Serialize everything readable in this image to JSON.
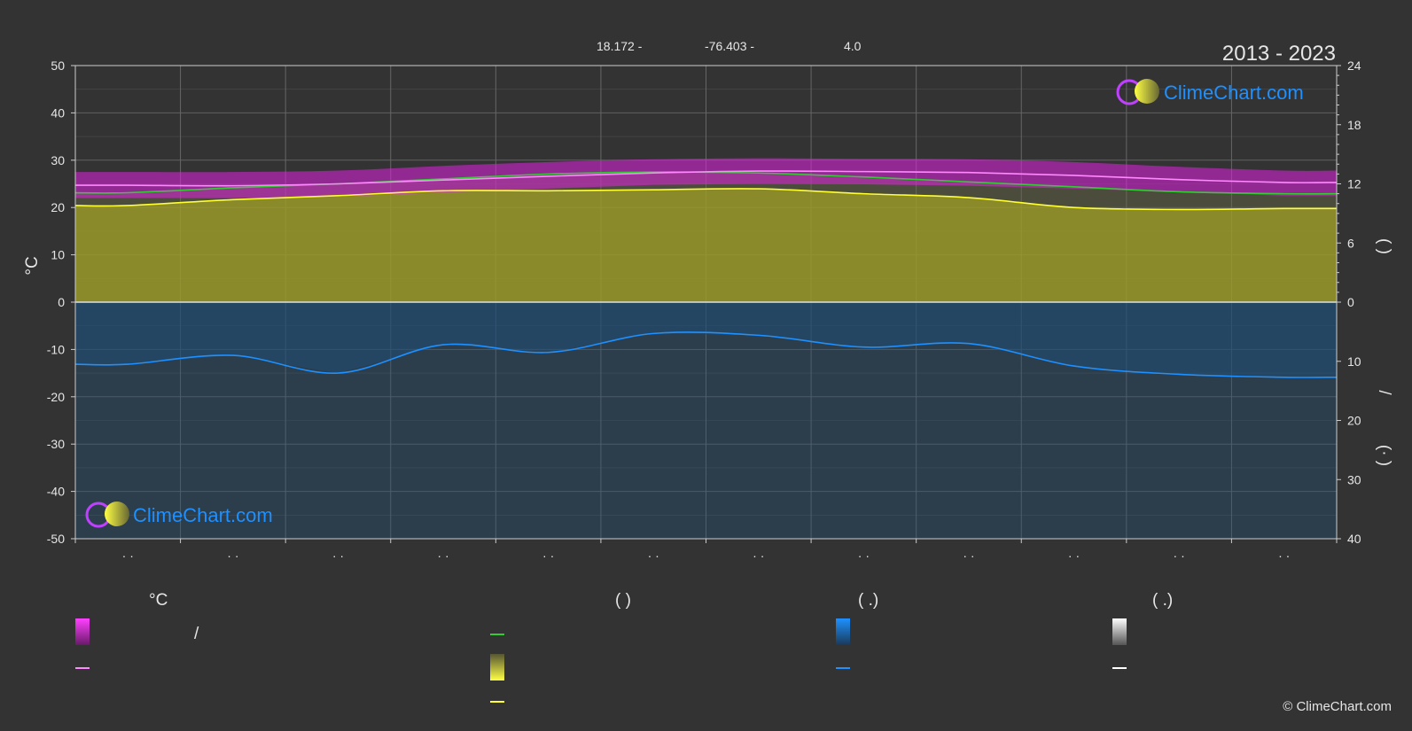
{
  "header": {
    "lat": "18.172 -",
    "lon": "-76.403 -",
    "elev": "4.0",
    "period": "2013 - 2023"
  },
  "branding": {
    "name": "ClimeChart.com",
    "copyright": "© ClimeChart.com"
  },
  "colors": {
    "background": "#333333",
    "grid": "#666666",
    "axis": "#cccccc",
    "daily_range": "#e020e0",
    "mean_max_line": "#ff88ff",
    "daylight_line": "#33cc33",
    "sunshine_fill": "#9a9a2a",
    "sunshine_line": "#ffff33",
    "precip_fill": "#1f4f78",
    "precip_line": "#1e90ff",
    "brand": "#1e90ff"
  },
  "legend": {
    "col1_header": "°C",
    "col2_header": "(          )",
    "col3_header": "(    .)",
    "col4_header": "(    .)",
    "slash": "/"
  },
  "chart_data": {
    "type": "area",
    "x_categories": [
      "· ·",
      "· ·",
      "· ·",
      "· ·",
      "· ·",
      "· ·",
      "· ·",
      "· ·",
      "· ·",
      "· ·",
      "· ·",
      "· ·"
    ],
    "left_axis": {
      "label": "°C",
      "ylim": [
        -50,
        50
      ],
      "ticks": [
        50,
        40,
        30,
        20,
        10,
        0,
        -10,
        -20,
        -30,
        -40,
        -50
      ]
    },
    "right_axis_top": {
      "label": "(   )",
      "ylim": [
        0,
        24
      ],
      "ticks": [
        24,
        18,
        12,
        6,
        0
      ]
    },
    "right_axis_bottom": {
      "label": "(·   )",
      "ylim": [
        0,
        40
      ],
      "ticks": [
        0,
        10,
        20,
        30,
        40
      ],
      "inverted": true
    },
    "right_axis_divider": "/",
    "series": [
      {
        "kind": "temperature_daily_max_band_top",
        "values": [
          27.5,
          27.5,
          27.8,
          28.8,
          29.6,
          30.2,
          30.4,
          30.3,
          30.2,
          29.6,
          28.6,
          27.8
        ]
      },
      {
        "kind": "temperature_daily_min_band_bottom",
        "values": [
          22.0,
          22.0,
          22.3,
          23.2,
          24.0,
          24.8,
          25.0,
          24.9,
          24.6,
          24.0,
          23.3,
          22.5
        ]
      },
      {
        "kind": "temperature_mean_line",
        "values": [
          24.7,
          24.6,
          25.0,
          25.8,
          26.6,
          27.3,
          27.7,
          27.6,
          27.4,
          26.8,
          25.9,
          25.3
        ]
      },
      {
        "kind": "daylight_hours",
        "axis": "right_top",
        "values": [
          11.1,
          11.6,
          12.0,
          12.5,
          13.0,
          13.2,
          13.1,
          12.7,
          12.2,
          11.7,
          11.2,
          11.0
        ]
      },
      {
        "kind": "sunshine_hours",
        "axis": "right_top",
        "values": [
          9.8,
          10.4,
          10.8,
          11.3,
          11.3,
          11.4,
          11.5,
          11.0,
          10.6,
          9.6,
          9.4,
          9.5
        ]
      },
      {
        "kind": "precipitation_mm",
        "axis": "right_bottom",
        "values": [
          10.5,
          9.0,
          12.0,
          7.2,
          8.5,
          5.3,
          5.6,
          7.6,
          7.0,
          10.8,
          12.2,
          12.7
        ]
      }
    ]
  }
}
